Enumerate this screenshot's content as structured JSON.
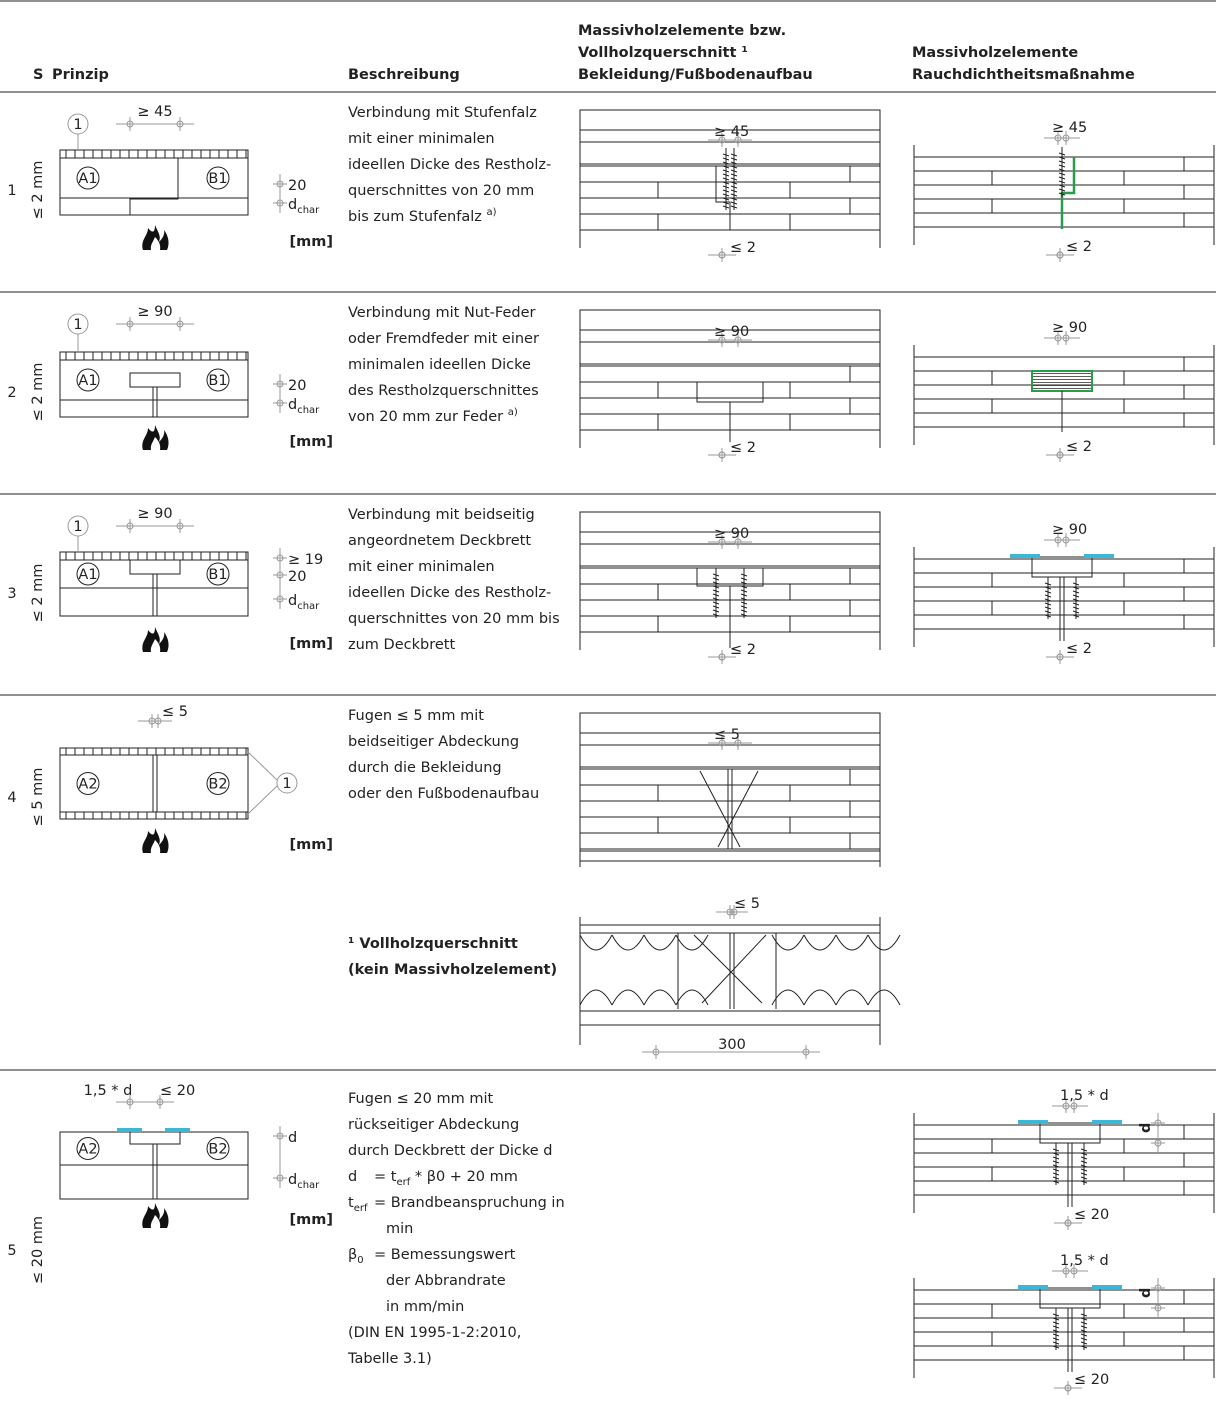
{
  "header": {
    "s": "S",
    "prinzip": "Prinzip",
    "beschreibung": "Beschreibung",
    "section": [
      "Massivholzelemente bzw.",
      "Vollholzquerschnitt ¹",
      "Bekleidung/Fußbodenaufbau"
    ],
    "smoke": [
      "Massivholzelemente",
      "Rauchdichtheitsmaßnahme"
    ]
  },
  "rows": [
    {
      "number": "1",
      "gap": "≤ 2 mm",
      "principle": {
        "left": "A1",
        "right": "B1",
        "marker": "1",
        "dimension": [
          "≥ 45"
        ],
        "layers": [
          "20",
          {
            "base": "d",
            "sub": "char"
          }
        ],
        "unit": "[mm]"
      },
      "description": [
        "Verbindung mit Stufenfalz",
        "mit einer minimalen",
        "ideellen Dicke des Restholz-",
        "querschnittes von 20 mm",
        {
          "pre": "bis zum Stufenfalz ",
          "sup": "a)"
        }
      ],
      "section": {
        "top": "≥ 45",
        "bottom": "≤ 2"
      },
      "smoke": [
        {
          "top": "≥ 45",
          "bottom": "≤ 2"
        }
      ]
    },
    {
      "number": "2",
      "gap": "≤ 2 mm",
      "principle": {
        "left": "A1",
        "right": "B1",
        "marker": "1",
        "dimension": [
          "≥ 90"
        ],
        "layers": [
          "20",
          {
            "base": "d",
            "sub": "char"
          }
        ],
        "unit": "[mm]"
      },
      "description": [
        "Verbindung mit Nut-Feder",
        "oder Fremdfeder mit einer",
        "minimalen ideellen Dicke",
        "des Restholzquerschnittes",
        {
          "pre": "von 20 mm zur Feder ",
          "sup": "a)"
        }
      ],
      "section": {
        "top": "≥ 90",
        "bottom": "≤ 2"
      },
      "smoke": [
        {
          "top": "≥ 90",
          "bottom": "≤ 2"
        }
      ]
    },
    {
      "number": "3",
      "gap": "≤ 2 mm",
      "principle": {
        "left": "A1",
        "right": "B1",
        "marker": "1",
        "dimension": [
          "≥ 90"
        ],
        "layers": [
          "≥ 19",
          "20",
          {
            "base": "d",
            "sub": "char"
          }
        ],
        "unit": "[mm]"
      },
      "description": [
        "Verbindung mit beidseitig",
        "angeordnetem Deckbrett",
        "mit einer minimalen",
        "ideellen Dicke des Restholz-",
        "querschnittes von 20 mm bis",
        "zum Deckbrett"
      ],
      "section": {
        "top": "≥ 90",
        "bottom": "≤ 2"
      },
      "smoke": [
        {
          "top": "≥ 90",
          "bottom": "≤ 2"
        }
      ]
    },
    {
      "number": "4",
      "gap": "≤ 5 mm",
      "principle": {
        "left": "A2",
        "right": "B2",
        "marker": "1",
        "dimension": [
          "≤ 5"
        ],
        "layers": [],
        "unit": "[mm]"
      },
      "description": [
        "Fugen ≤ 5 mm mit",
        "beidseitiger Abdeckung",
        "durch die Bekleidung",
        "oder den Fußbodenaufbau"
      ],
      "section": {
        "top": "≤ 5"
      },
      "smoke": [],
      "footnote": {
        "lines": [
          "¹ Vollholzquerschnitt",
          "(kein Massivholzelement)"
        ],
        "section": {
          "top": "≤ 5",
          "bottom": "300"
        }
      }
    },
    {
      "number": "5",
      "gap": "≤ 20 mm",
      "principle": {
        "left": "A2",
        "right": "B2",
        "dimension": [
          "1,5 * d",
          "≤ 20"
        ],
        "layers": [
          "d",
          {
            "base": "d",
            "sub": "char"
          }
        ],
        "unit": "[mm]"
      },
      "description": {
        "intro": [
          "Fugen ≤ 20 mm mit",
          "rückseitiger Abdeckung",
          "durch Deckbrett der Dicke d"
        ],
        "definitions": [
          {
            "term": "d",
            "lines": [
              {
                "pre": "= t",
                "sub": "erf",
                "post": " * β0 + 20 mm"
              }
            ]
          },
          {
            "term": "t",
            "sub": "erf",
            "lines": [
              "= Brandbeanspruchung in",
              "min"
            ]
          },
          {
            "term": "β",
            "sub": "0",
            "lines": [
              "= Bemessungswert",
              "der Abbrandrate",
              "in mm/min"
            ]
          }
        ],
        "source": [
          "(DIN EN 1995-1-2:2010,",
          "Tabelle 3.1)"
        ]
      },
      "smoke": [
        {
          "top": "1,5 * d",
          "side": "d",
          "bottom": "≤ 20"
        },
        {
          "top": "1,5 * d",
          "side": "d",
          "bottom": "≤ 20"
        }
      ]
    }
  ]
}
